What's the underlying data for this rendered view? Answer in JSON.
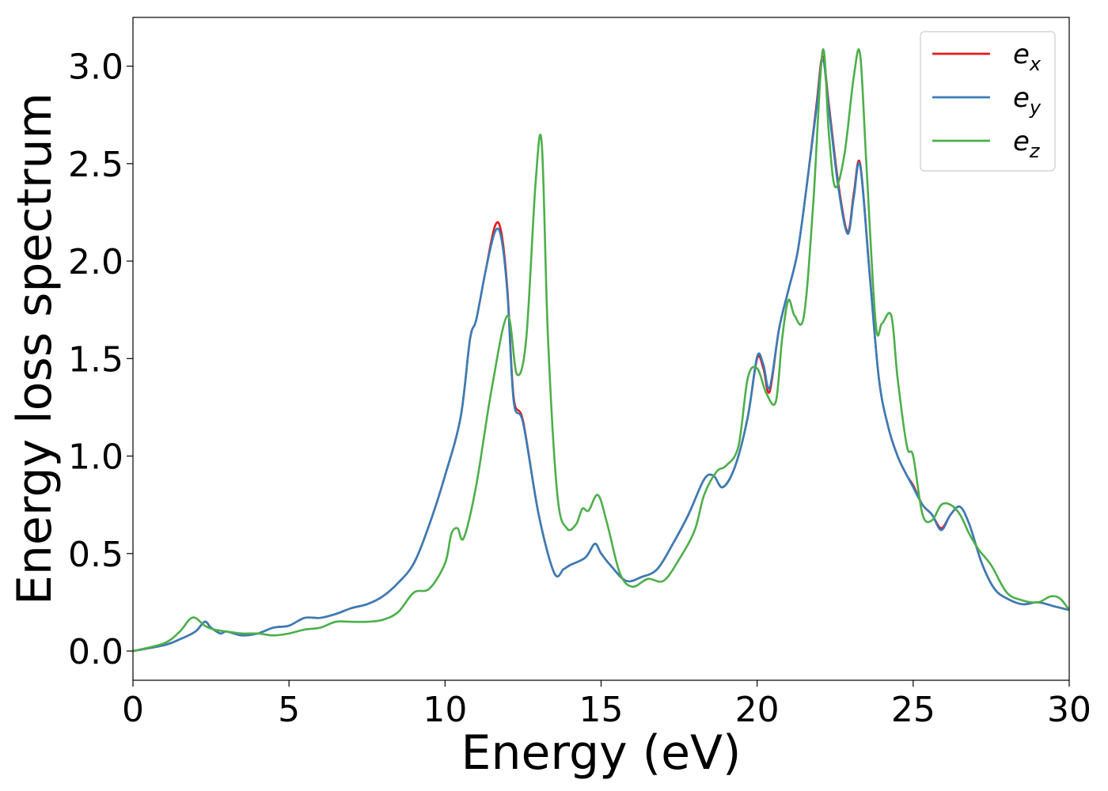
{
  "chart_data": {
    "type": "line",
    "xlabel": "Energy (eV)",
    "ylabel": "Energy loss spectrum",
    "xlim": [
      0,
      30
    ],
    "ylim": [
      -0.15,
      3.25
    ],
    "xticks": [
      0,
      5,
      10,
      15,
      20,
      25,
      30
    ],
    "xtick_labels": [
      "0",
      "5",
      "10",
      "15",
      "20",
      "25",
      "30"
    ],
    "yticks": [
      0.0,
      0.5,
      1.0,
      1.5,
      2.0,
      2.5,
      3.0
    ],
    "ytick_labels": [
      "0.0",
      "0.5",
      "1.0",
      "1.5",
      "2.0",
      "2.5",
      "3.0"
    ],
    "grid": false,
    "legend_position": "top-right",
    "series": [
      {
        "name": "e_x",
        "label_base": "e",
        "label_sub": "x",
        "color": "#e41a1c",
        "x": [
          0,
          1,
          1.5,
          2,
          2.3,
          2.5,
          2.8,
          3,
          3.5,
          4,
          4.5,
          5,
          5.5,
          6,
          6.5,
          7,
          7.5,
          8,
          8.5,
          9,
          9.5,
          10,
          10.5,
          10.8,
          11,
          11.3,
          11.6,
          11.8,
          12,
          12.2,
          12.5,
          13,
          13.5,
          13.8,
          14,
          14.5,
          14.8,
          15,
          15.3,
          15.8,
          16.3,
          16.8,
          17.3,
          17.8,
          18.3,
          18.6,
          18.9,
          19.3,
          19.7,
          20,
          20.2,
          20.4,
          20.7,
          21,
          21.3,
          21.6,
          21.9,
          22.1,
          22.3,
          22.6,
          22.9,
          23.1,
          23.3,
          23.6,
          23.9,
          24.2,
          24.5,
          24.8,
          25,
          25.3,
          25.6,
          25.9,
          26.2,
          26.5,
          26.8,
          27.2,
          27.6,
          28,
          28.5,
          29,
          29.5,
          30
        ],
        "y": [
          0,
          0.03,
          0.06,
          0.1,
          0.15,
          0.12,
          0.09,
          0.1,
          0.08,
          0.09,
          0.12,
          0.13,
          0.17,
          0.17,
          0.19,
          0.22,
          0.24,
          0.28,
          0.35,
          0.45,
          0.65,
          0.9,
          1.2,
          1.6,
          1.7,
          1.95,
          2.18,
          2.15,
          1.85,
          1.3,
          1.18,
          0.7,
          0.4,
          0.42,
          0.44,
          0.48,
          0.55,
          0.5,
          0.44,
          0.36,
          0.38,
          0.42,
          0.55,
          0.7,
          0.88,
          0.9,
          0.84,
          0.95,
          1.2,
          1.5,
          1.45,
          1.33,
          1.65,
          1.85,
          2.05,
          2.4,
          2.8,
          3.05,
          2.8,
          2.4,
          2.15,
          2.35,
          2.5,
          1.95,
          1.4,
          1.15,
          1.0,
          0.9,
          0.85,
          0.75,
          0.7,
          0.63,
          0.7,
          0.74,
          0.65,
          0.45,
          0.32,
          0.27,
          0.24,
          0.25,
          0.23,
          0.21
        ]
      },
      {
        "name": "e_y",
        "label_base": "e",
        "label_sub": "y",
        "color": "#377eb8",
        "x": [
          0,
          1,
          1.5,
          2,
          2.3,
          2.5,
          2.8,
          3,
          3.5,
          4,
          4.5,
          5,
          5.5,
          6,
          6.5,
          7,
          7.5,
          8,
          8.5,
          9,
          9.5,
          10,
          10.5,
          10.8,
          11,
          11.3,
          11.6,
          11.8,
          12,
          12.2,
          12.5,
          13,
          13.5,
          13.8,
          14,
          14.5,
          14.8,
          15,
          15.3,
          15.8,
          16.3,
          16.8,
          17.3,
          17.8,
          18.3,
          18.6,
          18.9,
          19.3,
          19.7,
          20,
          20.2,
          20.4,
          20.7,
          21,
          21.3,
          21.6,
          21.9,
          22.1,
          22.3,
          22.6,
          22.9,
          23.1,
          23.3,
          23.6,
          23.9,
          24.2,
          24.5,
          24.8,
          25,
          25.3,
          25.6,
          25.9,
          26.2,
          26.5,
          26.8,
          27.2,
          27.6,
          28,
          28.5,
          29,
          29.5,
          30
        ],
        "y": [
          0,
          0.03,
          0.06,
          0.1,
          0.15,
          0.12,
          0.09,
          0.1,
          0.08,
          0.09,
          0.12,
          0.13,
          0.17,
          0.17,
          0.19,
          0.22,
          0.24,
          0.28,
          0.35,
          0.45,
          0.65,
          0.9,
          1.2,
          1.6,
          1.7,
          1.95,
          2.15,
          2.12,
          1.83,
          1.28,
          1.17,
          0.7,
          0.4,
          0.42,
          0.44,
          0.48,
          0.55,
          0.5,
          0.44,
          0.36,
          0.38,
          0.42,
          0.55,
          0.7,
          0.88,
          0.9,
          0.84,
          0.95,
          1.2,
          1.51,
          1.47,
          1.35,
          1.65,
          1.85,
          2.05,
          2.4,
          2.78,
          3.03,
          2.78,
          2.38,
          2.14,
          2.33,
          2.49,
          1.94,
          1.4,
          1.15,
          1.0,
          0.9,
          0.84,
          0.75,
          0.7,
          0.62,
          0.7,
          0.74,
          0.65,
          0.45,
          0.32,
          0.27,
          0.24,
          0.25,
          0.23,
          0.21
        ]
      },
      {
        "name": "e_z",
        "label_base": "e",
        "label_sub": "z",
        "color": "#4daf4a",
        "x": [
          0,
          1,
          1.5,
          1.8,
          2,
          2.3,
          2.6,
          3,
          3.5,
          4,
          4.5,
          5,
          5.5,
          6,
          6.5,
          7,
          7.5,
          8,
          8.5,
          9,
          9.5,
          10,
          10.2,
          10.4,
          10.6,
          11,
          11.5,
          12,
          12.3,
          12.6,
          12.9,
          13.1,
          13.3,
          13.6,
          13.9,
          14.2,
          14.4,
          14.6,
          14.9,
          15.2,
          15.6,
          16,
          16.5,
          17,
          17.5,
          18,
          18.3,
          18.7,
          19,
          19.4,
          19.7,
          20,
          20.3,
          20.6,
          20.8,
          21,
          21.2,
          21.5,
          21.8,
          22.1,
          22.3,
          22.5,
          22.8,
          23.1,
          23.3,
          23.5,
          23.8,
          24,
          24.3,
          24.5,
          24.8,
          25,
          25.3,
          25.6,
          25.9,
          26.2,
          26.5,
          26.8,
          27.1,
          27.5,
          28,
          28.5,
          29,
          29.4,
          29.7,
          30
        ],
        "y": [
          0,
          0.04,
          0.1,
          0.16,
          0.17,
          0.13,
          0.11,
          0.1,
          0.09,
          0.09,
          0.08,
          0.09,
          0.11,
          0.12,
          0.15,
          0.15,
          0.15,
          0.16,
          0.2,
          0.3,
          0.32,
          0.45,
          0.6,
          0.63,
          0.58,
          0.85,
          1.35,
          1.72,
          1.42,
          1.6,
          2.4,
          2.6,
          1.6,
          0.8,
          0.63,
          0.65,
          0.73,
          0.72,
          0.8,
          0.65,
          0.4,
          0.33,
          0.37,
          0.36,
          0.47,
          0.62,
          0.8,
          0.92,
          0.95,
          1.05,
          1.4,
          1.45,
          1.32,
          1.28,
          1.6,
          1.8,
          1.72,
          1.72,
          2.3,
          3.08,
          2.65,
          2.38,
          2.55,
          2.95,
          3.06,
          2.5,
          1.68,
          1.68,
          1.72,
          1.4,
          1.05,
          1.0,
          0.7,
          0.67,
          0.75,
          0.75,
          0.7,
          0.6,
          0.52,
          0.44,
          0.3,
          0.26,
          0.25,
          0.28,
          0.27,
          0.21
        ]
      }
    ]
  }
}
